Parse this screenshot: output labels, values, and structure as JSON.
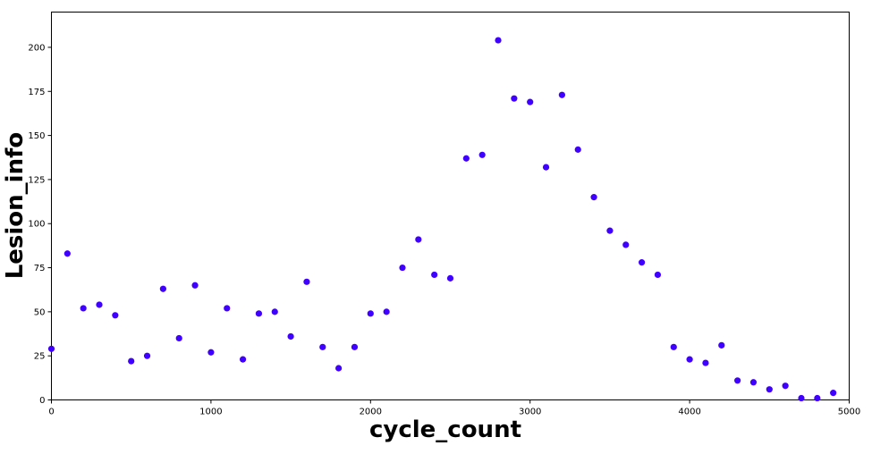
{
  "chart_data": {
    "type": "scatter",
    "title": "",
    "xlabel": "cycle_count",
    "ylabel": "Lesion_info",
    "xlim": [
      0,
      5000
    ],
    "ylim": [
      0,
      220
    ],
    "xticks": [
      0,
      1000,
      2000,
      3000,
      4000,
      5000
    ],
    "yticks": [
      0,
      25,
      50,
      75,
      100,
      125,
      150,
      175,
      200
    ],
    "grid": false,
    "marker_color": "#4000ff",
    "series": [
      {
        "x": [
          0,
          100,
          200,
          300,
          400,
          500,
          600,
          700,
          800,
          900,
          1000,
          1100,
          1200,
          1300,
          1400,
          1500,
          1600,
          1700,
          1800,
          1900,
          2000,
          2100,
          2200,
          2300,
          2400,
          2500,
          2600,
          2700,
          2800,
          2900,
          3000,
          3100,
          3200,
          3300,
          3400,
          3500,
          3600,
          3700,
          3800,
          3900,
          4000,
          4100,
          4200,
          4300,
          4400,
          4500,
          4600,
          4700,
          4800,
          4900
        ],
        "y": [
          29,
          83,
          52,
          54,
          48,
          22,
          25,
          63,
          35,
          65,
          27,
          52,
          23,
          49,
          50,
          36,
          67,
          30,
          18,
          30,
          49,
          50,
          75,
          91,
          71,
          69,
          137,
          139,
          204,
          171,
          169,
          132,
          173,
          142,
          115,
          96,
          88,
          78,
          71,
          30,
          23,
          21,
          31,
          11,
          10,
          6,
          8,
          1,
          1,
          4
        ]
      }
    ]
  }
}
